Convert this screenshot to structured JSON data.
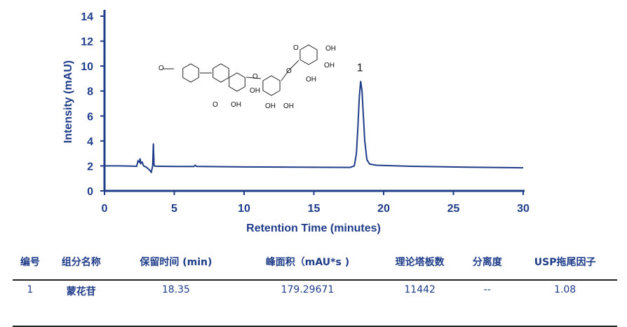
{
  "chart_data": {
    "type": "line",
    "xlabel": "Retention Time (minutes)",
    "ylabel": "Intensity (mAU)",
    "xlim": [
      0,
      30
    ],
    "ylim": [
      0,
      15
    ],
    "xticks": [
      0,
      5,
      10,
      15,
      20,
      25,
      30
    ],
    "yticks": [
      0,
      2,
      4,
      6,
      8,
      10,
      12,
      14
    ],
    "grid": false,
    "color": "#1f3c88",
    "x": [
      0,
      1,
      2,
      2.3,
      2.4,
      2.5,
      2.55,
      2.6,
      2.7,
      2.8,
      3.0,
      3.2,
      3.35,
      3.45,
      3.5,
      3.55,
      3.6,
      4,
      6,
      6.4,
      6.5,
      6.6,
      7,
      10,
      14,
      17.6,
      17.9,
      18.05,
      18.15,
      18.25,
      18.35,
      18.45,
      18.55,
      18.65,
      18.8,
      19,
      19.5,
      22,
      26,
      30
    ],
    "y": [
      2.0,
      2.0,
      1.98,
      1.97,
      2.4,
      2.3,
      2.6,
      2.2,
      2.3,
      2.0,
      1.9,
      1.7,
      1.5,
      2.0,
      3.8,
      2.1,
      1.98,
      1.97,
      1.95,
      1.95,
      2.05,
      1.96,
      1.95,
      1.92,
      1.9,
      1.88,
      2.0,
      3.0,
      5.0,
      7.4,
      8.8,
      8.0,
      6.0,
      4.0,
      2.5,
      2.15,
      2.05,
      1.97,
      1.9,
      1.85
    ],
    "annotations": [
      {
        "x": 18.35,
        "y": 9.6,
        "text": "1"
      }
    ]
  },
  "structure_labels": {
    "o": "O",
    "oh": "OH"
  },
  "table": {
    "headers": [
      "编号",
      "组分名称",
      "保留时间 (min)",
      "峰面积（mAU*s )",
      "理论塔板数",
      "分离度",
      "USP拖尾因子"
    ],
    "rows": [
      [
        "1",
        "蒙花苷",
        "18.35",
        "179.29671",
        "11442",
        "--",
        "1.08"
      ]
    ]
  }
}
